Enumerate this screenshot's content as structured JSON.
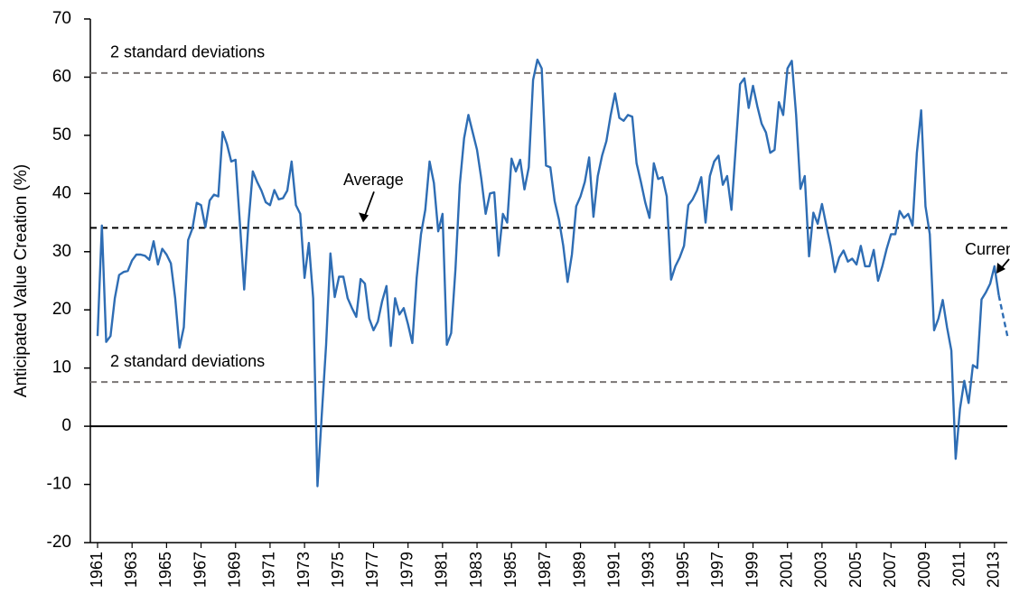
{
  "chart_data": {
    "type": "line",
    "y_label": "Anticipated Value Creation (%)",
    "ylim": [
      -20,
      70
    ],
    "yticks": [
      -20,
      -10,
      0,
      10,
      20,
      30,
      40,
      50,
      60,
      70
    ],
    "xlim": [
      1961,
      2013.9
    ],
    "xticks": [
      1961,
      1963,
      1965,
      1967,
      1969,
      1971,
      1973,
      1975,
      1977,
      1979,
      1981,
      1983,
      1985,
      1987,
      1989,
      1991,
      1993,
      1995,
      1997,
      1999,
      2001,
      2003,
      2005,
      2007,
      2009,
      2011,
      2013
    ],
    "reference_lines": [
      {
        "value": 60.7,
        "label": "2 standard deviations",
        "color": "#7a7574"
      },
      {
        "value": 34.1,
        "label": "Average",
        "color": "#000000"
      },
      {
        "value": 7.6,
        "label": "2 standard deviations",
        "color": "#7a7574"
      }
    ],
    "annotation": "Current",
    "series": [
      {
        "color": "#2e6db4",
        "dashed": false,
        "x": [
          1961,
          1961.25,
          1961.5,
          1961.75,
          1962,
          1962.25,
          1962.5,
          1962.75,
          1963,
          1963.25,
          1963.5,
          1963.75,
          1964,
          1964.25,
          1964.5,
          1964.75,
          1965,
          1965.25,
          1965.5,
          1965.75,
          1966,
          1966.25,
          1966.5,
          1966.75,
          1967,
          1967.25,
          1967.5,
          1967.75,
          1968,
          1968.25,
          1968.5,
          1968.75,
          1969,
          1969.25,
          1969.5,
          1969.75,
          1970,
          1970.25,
          1970.5,
          1970.75,
          1971,
          1971.25,
          1971.5,
          1971.75,
          1972,
          1972.25,
          1972.5,
          1972.75,
          1973,
          1973.25,
          1973.5,
          1973.75,
          1974,
          1974.25,
          1974.5,
          1974.75,
          1975,
          1975.25,
          1975.5,
          1975.75,
          1976,
          1976.25,
          1976.5,
          1976.75,
          1977,
          1977.25,
          1977.5,
          1977.75,
          1978,
          1978.25,
          1978.5,
          1978.75,
          1979,
          1979.25,
          1979.5,
          1979.75,
          1980,
          1980.25,
          1980.5,
          1980.75,
          1981,
          1981.25,
          1981.5,
          1981.75,
          1982,
          1982.25,
          1982.5,
          1982.75,
          1983,
          1983.25,
          1983.5,
          1983.75,
          1984,
          1984.25,
          1984.5,
          1984.75,
          1985,
          1985.25,
          1985.5,
          1985.75,
          1986,
          1986.25,
          1986.5,
          1986.75,
          1987,
          1987.25,
          1987.5,
          1987.75,
          1988,
          1988.25,
          1988.5,
          1988.75,
          1989,
          1989.25,
          1989.5,
          1989.75,
          1990,
          1990.25,
          1990.5,
          1990.75,
          1991,
          1991.25,
          1991.5,
          1991.75,
          1992,
          1992.25,
          1992.5,
          1992.75,
          1993,
          1993.25,
          1993.5,
          1993.75,
          1994,
          1994.25,
          1994.5,
          1994.75,
          1995,
          1995.25,
          1995.5,
          1995.75,
          1996,
          1996.25,
          1996.5,
          1996.75,
          1997,
          1997.25,
          1997.5,
          1997.75,
          1998,
          1998.25,
          1998.5,
          1998.75,
          1999,
          1999.25,
          1999.5,
          1999.75,
          2000,
          2000.25,
          2000.5,
          2000.75,
          2001,
          2001.25,
          2001.5,
          2001.75,
          2002,
          2002.25,
          2002.5,
          2002.75,
          2003,
          2003.25,
          2003.5,
          2003.75,
          2004,
          2004.25,
          2004.5,
          2004.75,
          2005,
          2005.25,
          2005.5,
          2005.75,
          2006,
          2006.25,
          2006.5,
          2006.75,
          2007,
          2007.25,
          2007.5,
          2007.75,
          2008,
          2008.25,
          2008.5,
          2008.75,
          2009,
          2009.25,
          2009.5,
          2009.75,
          2010,
          2010.25,
          2010.5,
          2010.75,
          2011,
          2011.25,
          2011.5,
          2011.75,
          2012,
          2012.25,
          2012.5,
          2012.75,
          2013,
          2013.25
        ],
        "values": [
          15.5,
          34.5,
          14.5,
          15.5,
          22,
          26,
          26.5,
          26.7,
          28.5,
          29.5,
          29.5,
          29.3,
          28.6,
          31.8,
          27.8,
          30.5,
          29.5,
          28,
          22,
          13.5,
          17,
          32,
          34,
          38.4,
          38,
          34.2,
          38.8,
          39.8,
          39.5,
          50.6,
          48.5,
          45.5,
          45.8,
          35,
          23.5,
          35,
          43.8,
          42,
          40.5,
          38.5,
          38,
          40.6,
          39,
          39.2,
          40.5,
          45.5,
          38,
          36.5,
          25.5,
          31.5,
          22,
          -10.3,
          2,
          14,
          29.7,
          22.2,
          25.7,
          25.7,
          22,
          20.3,
          18.8,
          25.3,
          24.5,
          18.5,
          16.5,
          18,
          21.5,
          24.1,
          13.8,
          22,
          19.2,
          20.3,
          17.5,
          14.3,
          25.5,
          33,
          37.2,
          45.5,
          41.8,
          33.5,
          36.5,
          14,
          16,
          27,
          41.5,
          49.5,
          53.5,
          50.5,
          47.5,
          42.5,
          36.5,
          40,
          40.2,
          29.3,
          36.5,
          35,
          46,
          43.8,
          45.8,
          40.7,
          44.5,
          59.5,
          63,
          61.5,
          44.8,
          44.5,
          38.7,
          35.5,
          31,
          24.8,
          29.5,
          37.8,
          39.5,
          42,
          46.2,
          36,
          43,
          46.5,
          49,
          53.5,
          57.2,
          53,
          52.5,
          53.5,
          53.2,
          45.2,
          42,
          38.5,
          35.8,
          45.2,
          42.5,
          42.8,
          39.5,
          25.2,
          27.5,
          29,
          31,
          38,
          39,
          40.5,
          42.8,
          35,
          43,
          45.5,
          46.5,
          41.5,
          43,
          37.2,
          48,
          58.8,
          59.8,
          54.7,
          58.5,
          55,
          52,
          50.5,
          47,
          47.5,
          55.7,
          53.5,
          61.5,
          62.8,
          53.5,
          40.8,
          43,
          29.2,
          36.7,
          34.8,
          38.2,
          34.5,
          31,
          26.5,
          29,
          30.2,
          28.3,
          28.8,
          27.8,
          31,
          27.5,
          27.5,
          30.3,
          25,
          27.5,
          30.5,
          33,
          33,
          37,
          35.8,
          36.5,
          34.5,
          47,
          54.3,
          37.8,
          33,
          16.5,
          18.5,
          21.7,
          17,
          13,
          -5.6,
          3,
          7.8,
          4,
          10.5,
          10,
          21.8,
          23,
          24.5,
          27.5,
          22.5
        ]
      },
      {
        "color": "#2e6db4",
        "dashed": true,
        "x": [
          2013.25,
          2013.75
        ],
        "values": [
          22.5,
          15.5
        ]
      }
    ]
  }
}
